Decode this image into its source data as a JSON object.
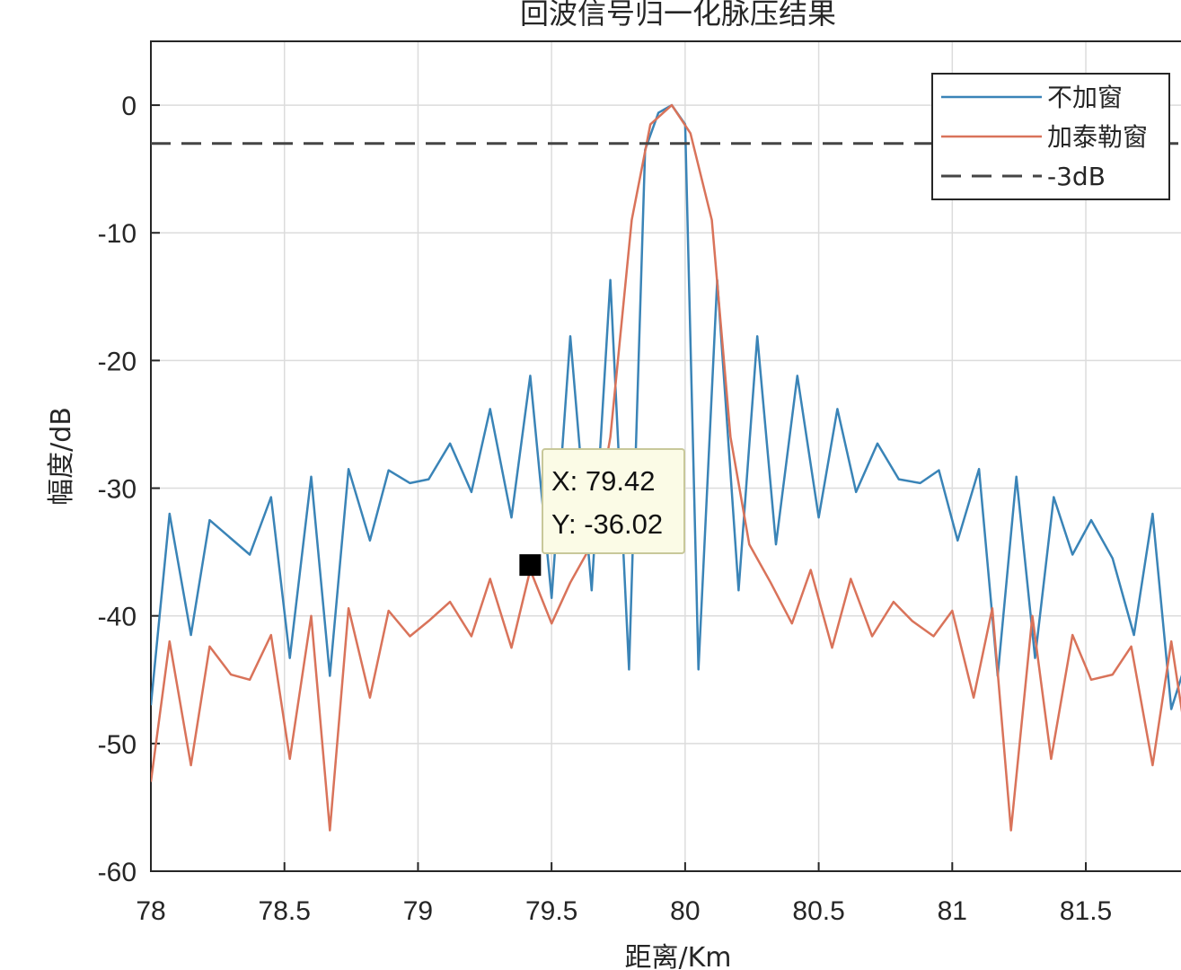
{
  "chart_data": {
    "type": "line",
    "title": "回波信号归一化脉压结果",
    "xlabel": "距离/Km",
    "ylabel": "幅度/dB",
    "xlim": [
      78,
      81.9
    ],
    "ylim": [
      -60,
      5
    ],
    "xticks": [
      78,
      78.5,
      79,
      79.5,
      80,
      80.5,
      81,
      81.5
    ],
    "xtick_labels": [
      "78",
      "78.5",
      "79",
      "79.5",
      "80",
      "80.5",
      "81",
      "81.5"
    ],
    "yticks": [
      0,
      -10,
      -20,
      -30,
      -40,
      -50,
      -60
    ],
    "ytick_labels": [
      "0",
      "-10",
      "-20",
      "-30",
      "-40",
      "-50",
      "-60"
    ],
    "grid": true,
    "legend_position": "top-right",
    "colors": {
      "blue": "#3a84b7",
      "orange": "#d9735a",
      "dashed": "#444444",
      "axis": "#262626",
      "grid": "#dcdcdc",
      "tooltip_bg": "#fbfbe6",
      "tooltip_border": "#c8c89a",
      "marker": "#000000"
    },
    "series": [
      {
        "name": "不加窗",
        "color": "#3a84b7",
        "dashed": false,
        "x": [
          78.0,
          78.07,
          78.15,
          78.22,
          78.37,
          78.45,
          78.52,
          78.6,
          78.67,
          78.74,
          78.82,
          78.89,
          78.97,
          79.04,
          79.12,
          79.2,
          79.27,
          79.35,
          79.42,
          79.5,
          79.57,
          79.65,
          79.72,
          79.79,
          79.85,
          79.9,
          79.95,
          80.0,
          80.05,
          80.12,
          80.2,
          80.27,
          80.34,
          80.42,
          80.5,
          80.57,
          80.64,
          80.72,
          80.8,
          80.88,
          80.95,
          81.02,
          81.1,
          81.17,
          81.24,
          81.31,
          81.38,
          81.45,
          81.52,
          81.6,
          81.68,
          81.75,
          81.82,
          81.9
        ],
        "y": [
          -47,
          -32,
          -41.5,
          -32.5,
          -35.2,
          -30.7,
          -43.3,
          -29.1,
          -44.7,
          -28.5,
          -34.1,
          -28.6,
          -29.6,
          -29.3,
          -26.5,
          -30.3,
          -23.8,
          -32.3,
          -21.2,
          -38.6,
          -18.1,
          -38,
          -13.7,
          -44.2,
          -3.5,
          -0.6,
          0,
          -1.5,
          -44.2,
          -13.7,
          -38,
          -18.1,
          -34.4,
          -21.2,
          -32.3,
          -23.8,
          -30.3,
          -26.5,
          -29.3,
          -29.6,
          -28.6,
          -34.1,
          -28.5,
          -44.7,
          -29.1,
          -43.3,
          -30.7,
          -35.2,
          -32.5,
          -35.5,
          -41.5,
          -32,
          -47.3,
          -42
        ]
      },
      {
        "name": "加泰勒窗",
        "color": "#d9735a",
        "dashed": false,
        "x": [
          78.0,
          78.07,
          78.15,
          78.22,
          78.3,
          78.37,
          78.45,
          78.52,
          78.6,
          78.67,
          78.74,
          78.82,
          78.89,
          78.97,
          79.04,
          79.12,
          79.2,
          79.27,
          79.35,
          79.42,
          79.5,
          79.57,
          79.65,
          79.72,
          79.8,
          79.87,
          79.95,
          80.02,
          80.1,
          80.17,
          80.24,
          80.32,
          80.4,
          80.47,
          80.55,
          80.62,
          80.7,
          80.78,
          80.85,
          80.93,
          81.0,
          81.08,
          81.15,
          81.22,
          81.3,
          81.37,
          81.45,
          81.52,
          81.6,
          81.67,
          81.75,
          81.82,
          81.9
        ],
        "y": [
          -53,
          -42,
          -51.7,
          -42.4,
          -44.6,
          -45,
          -41.5,
          -51.2,
          -40,
          -56.8,
          -39.4,
          -46.4,
          -39.6,
          -41.6,
          -40.4,
          -38.9,
          -41.6,
          -37.1,
          -42.5,
          -36.4,
          -40.6,
          -37.4,
          -34.4,
          -26,
          -9,
          -1.5,
          0,
          -2.2,
          -9,
          -26,
          -34.4,
          -37.4,
          -40.6,
          -36.4,
          -42.5,
          -37.1,
          -41.6,
          -38.9,
          -40.4,
          -41.6,
          -39.6,
          -46.4,
          -39.4,
          -56.8,
          -40,
          -51.2,
          -41.5,
          -45,
          -44.6,
          -42.4,
          -51.7,
          -42,
          -53
        ]
      },
      {
        "name": "-3dB",
        "color": "#444444",
        "dashed": true,
        "x": [
          78,
          81.9
        ],
        "y": [
          -3,
          -3
        ]
      }
    ],
    "datatip": {
      "x_label": "X: 79.42",
      "y_label": "Y: -36.02",
      "x": 79.42,
      "y": -36.02
    }
  }
}
